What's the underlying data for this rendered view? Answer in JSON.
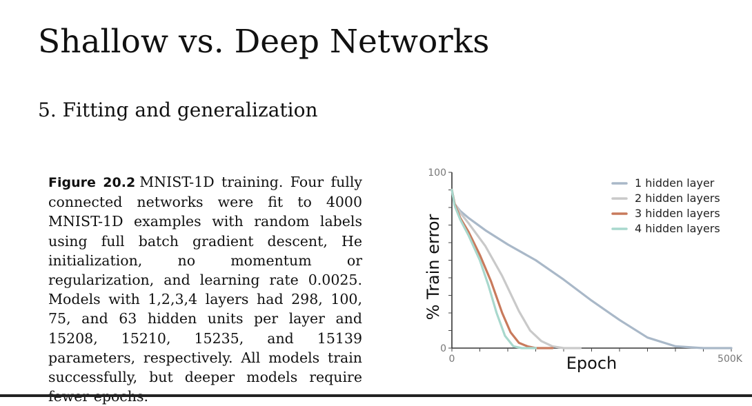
{
  "slide": {
    "title": "Shallow vs. Deep Networks",
    "subtitle": "5. Fitting and generalization"
  },
  "caption": {
    "label": "Figure 20.2",
    "text": "MNIST-1D training. Four fully connected networks were fit to 4000 MNIST-1D examples with random labels using full batch gradient descent, He initialization, no momentum or regularization, and learning rate 0.0025. Models with 1,2,3,4 layers had 298, 100, 75, and 63 hidden units per layer and 15208, 15210, 15235, and 15139 parameters, respectively. All models train successfully, but deeper models require fewer epochs."
  },
  "chart_data": {
    "type": "line",
    "title": "",
    "xlabel": "Epoch",
    "ylabel": "% Train error",
    "xlim": [
      0,
      500000
    ],
    "ylim": [
      0,
      100
    ],
    "x_tick_labels": [
      "0",
      "500K"
    ],
    "y_tick_labels": [
      "0",
      "100"
    ],
    "legend_position": "top-right",
    "series": [
      {
        "name": "1 hidden layer",
        "color": "#a9b8c8",
        "x": [
          0,
          5000,
          15000,
          30000,
          60000,
          100000,
          150000,
          200000,
          250000,
          300000,
          350000,
          400000,
          450000,
          500000
        ],
        "y": [
          90,
          82,
          78,
          74,
          67,
          59,
          50,
          39,
          27,
          16,
          6,
          1,
          0,
          0
        ]
      },
      {
        "name": "2 hidden layers",
        "color": "#c9c9c9",
        "x": [
          0,
          5000,
          15000,
          30000,
          60000,
          90000,
          120000,
          140000,
          160000,
          180000,
          200000,
          230000
        ],
        "y": [
          90,
          82,
          77,
          71,
          58,
          41,
          21,
          10,
          4,
          1,
          0,
          0
        ]
      },
      {
        "name": "3 hidden layers",
        "color": "#c87a5c",
        "x": [
          0,
          5000,
          15000,
          30000,
          50000,
          70000,
          90000,
          105000,
          120000,
          135000,
          150000,
          180000
        ],
        "y": [
          90,
          82,
          74,
          66,
          53,
          38,
          20,
          9,
          3,
          1,
          0,
          0
        ]
      },
      {
        "name": "4 hidden layers",
        "color": "#a8d8cd",
        "x": [
          0,
          5000,
          15000,
          30000,
          50000,
          65000,
          80000,
          95000,
          110000,
          125000,
          150000
        ],
        "y": [
          90,
          81,
          73,
          64,
          50,
          36,
          20,
          7,
          1,
          0,
          0
        ]
      }
    ]
  }
}
